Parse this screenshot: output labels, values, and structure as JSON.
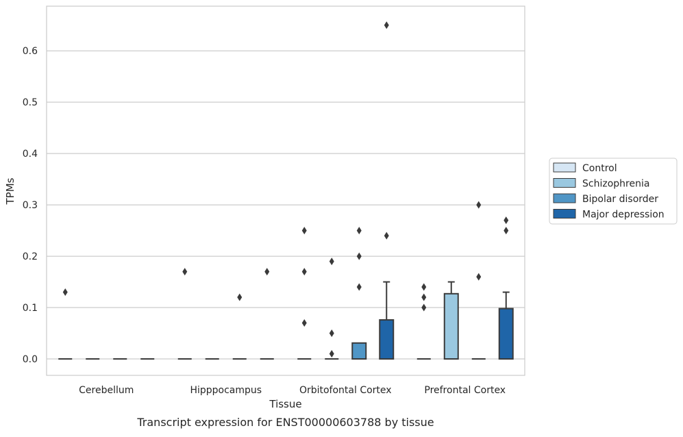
{
  "caption": "Transcript expression for ENST00000603788 by tissue",
  "chart_data": {
    "type": "box",
    "xlabel": "Tissue",
    "ylabel": "TPMs",
    "ylim": [
      -0.032,
      0.687
    ],
    "yticks": [
      0.0,
      0.1,
      0.2,
      0.3,
      0.4,
      0.5,
      0.6
    ],
    "ytick_labels": [
      "0.0",
      "0.1",
      "0.2",
      "0.3",
      "0.4",
      "0.5",
      "0.6"
    ],
    "grid": true,
    "legend_position": "right",
    "categories": [
      "Cerebellum",
      "Hipppocampus",
      "Orbitofontal Cortex",
      "Prefrontal Cortex"
    ],
    "series": [
      {
        "name": "Control",
        "color": "#d6e6f4",
        "boxes": [
          {
            "q1": 0,
            "median": 0,
            "q3": 0,
            "whisker_low": 0,
            "whisker_high": 0,
            "outliers": [
              0.13
            ]
          },
          {
            "q1": 0,
            "median": 0,
            "q3": 0,
            "whisker_low": 0,
            "whisker_high": 0,
            "outliers": [
              0.17
            ]
          },
          {
            "q1": 0,
            "median": 0,
            "q3": 0,
            "whisker_low": 0,
            "whisker_high": 0,
            "outliers": [
              0.25,
              0.17,
              0.07
            ]
          },
          {
            "q1": 0,
            "median": 0,
            "q3": 0,
            "whisker_low": 0,
            "whisker_high": 0,
            "outliers": [
              0.14,
              0.12,
              0.1
            ]
          }
        ]
      },
      {
        "name": "Schizophrenia",
        "color": "#9ac8e0",
        "boxes": [
          {
            "q1": 0,
            "median": 0,
            "q3": 0,
            "whisker_low": 0,
            "whisker_high": 0,
            "outliers": []
          },
          {
            "q1": 0,
            "median": 0,
            "q3": 0,
            "whisker_low": 0,
            "whisker_high": 0,
            "outliers": []
          },
          {
            "q1": 0,
            "median": 0,
            "q3": 0,
            "whisker_low": 0,
            "whisker_high": 0,
            "outliers": [
              0.19,
              0.05,
              0.01
            ]
          },
          {
            "q1": 0,
            "median": 0,
            "q3": 0.127,
            "whisker_low": 0,
            "whisker_high": 0.15,
            "outliers": []
          }
        ]
      },
      {
        "name": "Bipolar disorder",
        "color": "#5096c6",
        "boxes": [
          {
            "q1": 0,
            "median": 0,
            "q3": 0,
            "whisker_low": 0,
            "whisker_high": 0,
            "outliers": []
          },
          {
            "q1": 0,
            "median": 0,
            "q3": 0,
            "whisker_low": 0,
            "whisker_high": 0,
            "outliers": [
              0.12
            ]
          },
          {
            "q1": 0,
            "median": 0,
            "q3": 0.031,
            "whisker_low": 0,
            "whisker_high": 0.031,
            "outliers": [
              0.25,
              0.2,
              0.14
            ]
          },
          {
            "q1": 0,
            "median": 0,
            "q3": 0,
            "whisker_low": 0,
            "whisker_high": 0,
            "outliers": [
              0.3,
              0.16
            ]
          }
        ]
      },
      {
        "name": "Major depression",
        "color": "#1f65a8",
        "boxes": [
          {
            "q1": 0,
            "median": 0,
            "q3": 0,
            "whisker_low": 0,
            "whisker_high": 0,
            "outliers": []
          },
          {
            "q1": 0,
            "median": 0,
            "q3": 0,
            "whisker_low": 0,
            "whisker_high": 0,
            "outliers": [
              0.17
            ]
          },
          {
            "q1": 0,
            "median": 0,
            "q3": 0.076,
            "whisker_low": 0,
            "whisker_high": 0.15,
            "outliers": [
              0.65,
              0.24
            ]
          },
          {
            "q1": 0,
            "median": 0,
            "q3": 0.098,
            "whisker_low": 0,
            "whisker_high": 0.13,
            "outliers": [
              0.27,
              0.25
            ]
          }
        ]
      }
    ]
  }
}
